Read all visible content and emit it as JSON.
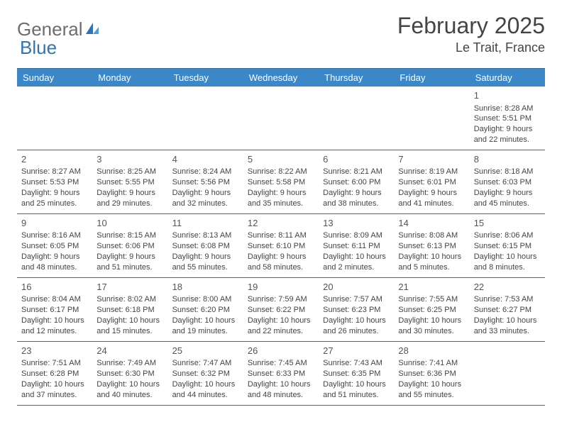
{
  "logo": {
    "text1": "General",
    "text2": "Blue"
  },
  "title": {
    "month": "February 2025",
    "location": "Le Trait, France"
  },
  "weekdays": [
    "Sunday",
    "Monday",
    "Tuesday",
    "Wednesday",
    "Thursday",
    "Friday",
    "Saturday"
  ],
  "style": {
    "header_bg": "#3b87c8",
    "header_fg": "#ffffff",
    "rule_color": "#2f6ca0",
    "text_color": "#444444",
    "logo_blue": "#2f75b5",
    "logo_gray": "#6d6d6d",
    "daynum_fontsize": 13,
    "body_fontsize": 11,
    "title_fontsize": 32,
    "loc_fontsize": 18
  },
  "weeks": [
    [
      null,
      null,
      null,
      null,
      null,
      null,
      {
        "n": "1",
        "sr": "Sunrise: 8:28 AM",
        "ss": "Sunset: 5:51 PM",
        "d1": "Daylight: 9 hours",
        "d2": "and 22 minutes."
      }
    ],
    [
      {
        "n": "2",
        "sr": "Sunrise: 8:27 AM",
        "ss": "Sunset: 5:53 PM",
        "d1": "Daylight: 9 hours",
        "d2": "and 25 minutes."
      },
      {
        "n": "3",
        "sr": "Sunrise: 8:25 AM",
        "ss": "Sunset: 5:55 PM",
        "d1": "Daylight: 9 hours",
        "d2": "and 29 minutes."
      },
      {
        "n": "4",
        "sr": "Sunrise: 8:24 AM",
        "ss": "Sunset: 5:56 PM",
        "d1": "Daylight: 9 hours",
        "d2": "and 32 minutes."
      },
      {
        "n": "5",
        "sr": "Sunrise: 8:22 AM",
        "ss": "Sunset: 5:58 PM",
        "d1": "Daylight: 9 hours",
        "d2": "and 35 minutes."
      },
      {
        "n": "6",
        "sr": "Sunrise: 8:21 AM",
        "ss": "Sunset: 6:00 PM",
        "d1": "Daylight: 9 hours",
        "d2": "and 38 minutes."
      },
      {
        "n": "7",
        "sr": "Sunrise: 8:19 AM",
        "ss": "Sunset: 6:01 PM",
        "d1": "Daylight: 9 hours",
        "d2": "and 41 minutes."
      },
      {
        "n": "8",
        "sr": "Sunrise: 8:18 AM",
        "ss": "Sunset: 6:03 PM",
        "d1": "Daylight: 9 hours",
        "d2": "and 45 minutes."
      }
    ],
    [
      {
        "n": "9",
        "sr": "Sunrise: 8:16 AM",
        "ss": "Sunset: 6:05 PM",
        "d1": "Daylight: 9 hours",
        "d2": "and 48 minutes."
      },
      {
        "n": "10",
        "sr": "Sunrise: 8:15 AM",
        "ss": "Sunset: 6:06 PM",
        "d1": "Daylight: 9 hours",
        "d2": "and 51 minutes."
      },
      {
        "n": "11",
        "sr": "Sunrise: 8:13 AM",
        "ss": "Sunset: 6:08 PM",
        "d1": "Daylight: 9 hours",
        "d2": "and 55 minutes."
      },
      {
        "n": "12",
        "sr": "Sunrise: 8:11 AM",
        "ss": "Sunset: 6:10 PM",
        "d1": "Daylight: 9 hours",
        "d2": "and 58 minutes."
      },
      {
        "n": "13",
        "sr": "Sunrise: 8:09 AM",
        "ss": "Sunset: 6:11 PM",
        "d1": "Daylight: 10 hours",
        "d2": "and 2 minutes."
      },
      {
        "n": "14",
        "sr": "Sunrise: 8:08 AM",
        "ss": "Sunset: 6:13 PM",
        "d1": "Daylight: 10 hours",
        "d2": "and 5 minutes."
      },
      {
        "n": "15",
        "sr": "Sunrise: 8:06 AM",
        "ss": "Sunset: 6:15 PM",
        "d1": "Daylight: 10 hours",
        "d2": "and 8 minutes."
      }
    ],
    [
      {
        "n": "16",
        "sr": "Sunrise: 8:04 AM",
        "ss": "Sunset: 6:17 PM",
        "d1": "Daylight: 10 hours",
        "d2": "and 12 minutes."
      },
      {
        "n": "17",
        "sr": "Sunrise: 8:02 AM",
        "ss": "Sunset: 6:18 PM",
        "d1": "Daylight: 10 hours",
        "d2": "and 15 minutes."
      },
      {
        "n": "18",
        "sr": "Sunrise: 8:00 AM",
        "ss": "Sunset: 6:20 PM",
        "d1": "Daylight: 10 hours",
        "d2": "and 19 minutes."
      },
      {
        "n": "19",
        "sr": "Sunrise: 7:59 AM",
        "ss": "Sunset: 6:22 PM",
        "d1": "Daylight: 10 hours",
        "d2": "and 22 minutes."
      },
      {
        "n": "20",
        "sr": "Sunrise: 7:57 AM",
        "ss": "Sunset: 6:23 PM",
        "d1": "Daylight: 10 hours",
        "d2": "and 26 minutes."
      },
      {
        "n": "21",
        "sr": "Sunrise: 7:55 AM",
        "ss": "Sunset: 6:25 PM",
        "d1": "Daylight: 10 hours",
        "d2": "and 30 minutes."
      },
      {
        "n": "22",
        "sr": "Sunrise: 7:53 AM",
        "ss": "Sunset: 6:27 PM",
        "d1": "Daylight: 10 hours",
        "d2": "and 33 minutes."
      }
    ],
    [
      {
        "n": "23",
        "sr": "Sunrise: 7:51 AM",
        "ss": "Sunset: 6:28 PM",
        "d1": "Daylight: 10 hours",
        "d2": "and 37 minutes."
      },
      {
        "n": "24",
        "sr": "Sunrise: 7:49 AM",
        "ss": "Sunset: 6:30 PM",
        "d1": "Daylight: 10 hours",
        "d2": "and 40 minutes."
      },
      {
        "n": "25",
        "sr": "Sunrise: 7:47 AM",
        "ss": "Sunset: 6:32 PM",
        "d1": "Daylight: 10 hours",
        "d2": "and 44 minutes."
      },
      {
        "n": "26",
        "sr": "Sunrise: 7:45 AM",
        "ss": "Sunset: 6:33 PM",
        "d1": "Daylight: 10 hours",
        "d2": "and 48 minutes."
      },
      {
        "n": "27",
        "sr": "Sunrise: 7:43 AM",
        "ss": "Sunset: 6:35 PM",
        "d1": "Daylight: 10 hours",
        "d2": "and 51 minutes."
      },
      {
        "n": "28",
        "sr": "Sunrise: 7:41 AM",
        "ss": "Sunset: 6:36 PM",
        "d1": "Daylight: 10 hours",
        "d2": "and 55 minutes."
      },
      null
    ]
  ]
}
